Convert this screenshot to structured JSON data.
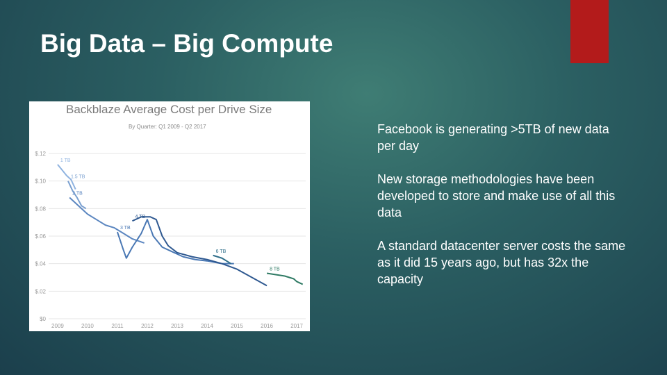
{
  "slide": {
    "title": "Big Data – Big Compute",
    "bullets": [
      "Facebook is generating >5TB of new data per day",
      "New storage methodologies have been developed to store and make use of all this data",
      "A standard datacenter server costs the same as it did 15 years ago, but has 32x the capacity"
    ]
  },
  "chart_data": {
    "type": "line",
    "title": "Backblaze Average Cost per Drive Size",
    "subtitle": "By Quarter: Q1 2009 - Q2 2017",
    "xlim": [
      2008.7,
      2017.3
    ],
    "xticks": [
      2009,
      2010,
      2011,
      2012,
      2013,
      2014,
      2015,
      2016,
      2017
    ],
    "ylim": [
      0,
      0.12
    ],
    "yticks": [
      {
        "value": 0,
        "label": "$0"
      },
      {
        "value": 0.02,
        "label": "$.02"
      },
      {
        "value": 0.04,
        "label": "$.04"
      },
      {
        "value": 0.06,
        "label": "$.06"
      },
      {
        "value": 0.08,
        "label": "$.08"
      },
      {
        "value": 0.1,
        "label": "$.10"
      },
      {
        "value": 0.12,
        "label": "$.12"
      }
    ],
    "grid": true,
    "series": [
      {
        "name": "1 TB",
        "color": "#8fb3e0",
        "x": [
          2009.0,
          2009.15,
          2009.3,
          2009.45,
          2009.6
        ],
        "values": [
          0.112,
          0.108,
          0.104,
          0.101,
          0.094
        ]
      },
      {
        "name": "1.5 TB",
        "color": "#7aa0d0",
        "x": [
          2009.35,
          2009.5,
          2009.65,
          2009.8,
          2009.95
        ],
        "values": [
          0.1,
          0.093,
          0.088,
          0.082,
          0.08
        ]
      },
      {
        "name": "2 TB",
        "color": "#5b86c0",
        "x": [
          2009.4,
          2009.7,
          2010.0,
          2010.3,
          2010.6,
          2010.9,
          2011.2,
          2011.5,
          2011.9
        ],
        "values": [
          0.088,
          0.082,
          0.076,
          0.072,
          0.068,
          0.066,
          0.062,
          0.058,
          0.055
        ]
      },
      {
        "name": "3 TB",
        "color": "#4a78b4",
        "x": [
          2011.0,
          2011.2,
          2011.3,
          2011.5,
          2011.8,
          2012.0,
          2012.2,
          2012.5,
          2012.8,
          2013.2,
          2013.6,
          2014.0,
          2014.5,
          2014.9
        ],
        "values": [
          0.063,
          0.05,
          0.044,
          0.052,
          0.062,
          0.072,
          0.06,
          0.052,
          0.049,
          0.045,
          0.043,
          0.042,
          0.04,
          0.04
        ]
      },
      {
        "name": "4 TB",
        "color": "#2e5890",
        "x": [
          2011.5,
          2011.8,
          2012.1,
          2012.3,
          2012.5,
          2012.7,
          2013.0,
          2013.5,
          2014.0,
          2014.5,
          2015.0,
          2015.5,
          2016.0
        ],
        "values": [
          0.071,
          0.074,
          0.074,
          0.072,
          0.06,
          0.053,
          0.048,
          0.045,
          0.043,
          0.04,
          0.036,
          0.03,
          0.024
        ]
      },
      {
        "name": "6 TB",
        "color": "#2f6e8a",
        "x": [
          2014.2,
          2014.5,
          2014.8
        ],
        "values": [
          0.046,
          0.044,
          0.04
        ]
      },
      {
        "name": "8 TB",
        "color": "#2f7a64",
        "x": [
          2016.0,
          2016.3,
          2016.6,
          2016.9,
          2017.0,
          2017.2
        ],
        "values": [
          0.033,
          0.032,
          0.031,
          0.029,
          0.027,
          0.025
        ]
      }
    ]
  }
}
